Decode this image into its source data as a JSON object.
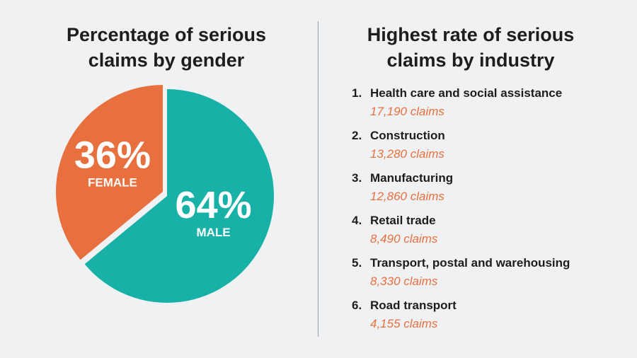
{
  "chart_data": [
    {
      "type": "pie",
      "title": "Percentage of serious claims by gender",
      "title_lines": [
        "Percentage of serious",
        "claims by gender"
      ],
      "slices": [
        {
          "label": "FEMALE",
          "value": 36,
          "display": "36%",
          "color": "#e8703f"
        },
        {
          "label": "MALE",
          "value": 64,
          "display": "64%",
          "color": "#17b1a8"
        }
      ]
    },
    {
      "type": "table",
      "title": "Highest rate of serious claims by industry",
      "title_lines": [
        "Highest rate of serious",
        "claims by industry"
      ],
      "rows": [
        {
          "rank": "1.",
          "industry": "Health care and social assistance",
          "claims": 17190,
          "claims_label": "17,190 claims"
        },
        {
          "rank": "2.",
          "industry": "Construction",
          "claims": 13280,
          "claims_label": "13,280 claims"
        },
        {
          "rank": "3.",
          "industry": "Manufacturing",
          "claims": 12860,
          "claims_label": "12,860 claims"
        },
        {
          "rank": "4.",
          "industry": "Retail trade",
          "claims": 8490,
          "claims_label": "8,490 claims"
        },
        {
          "rank": "5.",
          "industry": "Transport, postal and warehousing",
          "claims": 8330,
          "claims_label": "8,330 claims"
        },
        {
          "rank": "6.",
          "industry": "Road transport",
          "claims": 4155,
          "claims_label": "4,155 claims"
        }
      ]
    }
  ],
  "colors": {
    "accent_orange": "#e8703f",
    "accent_teal": "#17b1a8",
    "background": "#f0f1f2",
    "divider": "#9a9ea3"
  }
}
